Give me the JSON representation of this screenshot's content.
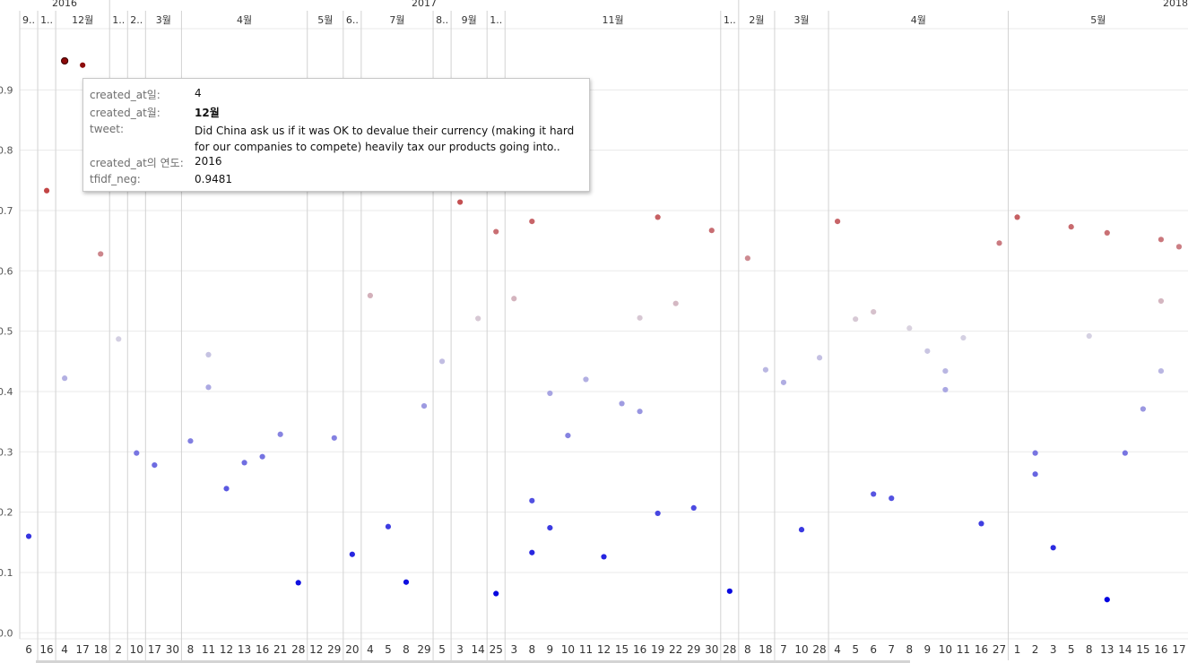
{
  "chart_data": {
    "type": "scatter",
    "y_axis": {
      "range": [
        -0.01,
        1.0
      ],
      "ticks": [
        {
          "value": 0.0,
          "label": "0.0"
        },
        {
          "value": 0.1,
          "label": "0.1"
        },
        {
          "value": 0.2,
          "label": "0.2"
        },
        {
          "value": 0.3,
          "label": "0.3"
        },
        {
          "value": 0.4,
          "label": "0.4"
        },
        {
          "value": 0.5,
          "label": "0.5"
        },
        {
          "value": 0.6,
          "label": "0.6"
        },
        {
          "value": 0.7,
          "label": "0.7"
        },
        {
          "value": 0.8,
          "label": "0.8"
        },
        {
          "value": 0.9,
          "label": "0.9"
        }
      ]
    },
    "years": [
      {
        "label": "2016",
        "first_day": 0,
        "last_day": 4
      },
      {
        "label": "2017",
        "first_day": 5,
        "last_day": 39
      },
      {
        "label": "2018",
        "first_day": 40,
        "last_day": 64
      }
    ],
    "months": [
      {
        "label": "9..",
        "first_day": 0,
        "last_day": 0
      },
      {
        "label": "1..",
        "first_day": 1,
        "last_day": 1
      },
      {
        "label": "12월",
        "first_day": 2,
        "last_day": 4
      },
      {
        "label": "1..",
        "first_day": 5,
        "last_day": 5
      },
      {
        "label": "2..",
        "first_day": 6,
        "last_day": 6
      },
      {
        "label": "3월",
        "first_day": 7,
        "last_day": 8
      },
      {
        "label": "4월",
        "first_day": 9,
        "last_day": 15
      },
      {
        "label": "5월",
        "first_day": 16,
        "last_day": 17
      },
      {
        "label": "6..",
        "first_day": 18,
        "last_day": 18
      },
      {
        "label": "7월",
        "first_day": 19,
        "last_day": 22
      },
      {
        "label": "8..",
        "first_day": 23,
        "last_day": 23
      },
      {
        "label": "9월",
        "first_day": 24,
        "last_day": 25
      },
      {
        "label": "1..",
        "first_day": 26,
        "last_day": 26
      },
      {
        "label": "11월",
        "first_day": 27,
        "last_day": 38
      },
      {
        "label": "1..",
        "first_day": 39,
        "last_day": 39
      },
      {
        "label": "2월",
        "first_day": 40,
        "last_day": 41
      },
      {
        "label": "3월",
        "first_day": 42,
        "last_day": 44
      },
      {
        "label": "4월",
        "first_day": 45,
        "last_day": 54
      },
      {
        "label": "5월",
        "first_day": 55,
        "last_day": 64
      }
    ],
    "days": [
      "6",
      "16",
      "4",
      "17",
      "18",
      "2",
      "10",
      "17",
      "30",
      "8",
      "11",
      "12",
      "13",
      "16",
      "21",
      "28",
      "12",
      "29",
      "20",
      "4",
      "5",
      "8",
      "29",
      "5",
      "3",
      "14",
      "25",
      "3",
      "8",
      "9",
      "10",
      "11",
      "12",
      "15",
      "16",
      "19",
      "22",
      "29",
      "30",
      "28",
      "8",
      "18",
      "7",
      "10",
      "28",
      "4",
      "5",
      "6",
      "7",
      "8",
      "9",
      "10",
      "11",
      "16",
      "27",
      "1",
      "2",
      "3",
      "5",
      "8",
      "13",
      "14",
      "15",
      "16",
      "17"
    ],
    "points": [
      {
        "day": 0,
        "y": 0.16
      },
      {
        "day": 1,
        "y": 0.733
      },
      {
        "day": 2,
        "y": 0.9481
      },
      {
        "day": 2,
        "y": 0.422
      },
      {
        "day": 3,
        "y": 0.941
      },
      {
        "day": 4,
        "y": 0.628
      },
      {
        "day": 5,
        "y": 0.487
      },
      {
        "day": 6,
        "y": 0.298
      },
      {
        "day": 7,
        "y": 0.278
      },
      {
        "day": 9,
        "y": 0.318
      },
      {
        "day": 10,
        "y": 0.461
      },
      {
        "day": 10,
        "y": 0.407
      },
      {
        "day": 11,
        "y": 0.239
      },
      {
        "day": 12,
        "y": 0.282
      },
      {
        "day": 13,
        "y": 0.292
      },
      {
        "day": 14,
        "y": 0.329
      },
      {
        "day": 15,
        "y": 0.083
      },
      {
        "day": 17,
        "y": 0.323
      },
      {
        "day": 18,
        "y": 0.13
      },
      {
        "day": 19,
        "y": 0.559
      },
      {
        "day": 20,
        "y": 0.176
      },
      {
        "day": 21,
        "y": 0.084
      },
      {
        "day": 22,
        "y": 0.376
      },
      {
        "day": 23,
        "y": 0.45
      },
      {
        "day": 24,
        "y": 0.714
      },
      {
        "day": 25,
        "y": 0.521
      },
      {
        "day": 26,
        "y": 0.665
      },
      {
        "day": 26,
        "y": 0.065
      },
      {
        "day": 27,
        "y": 0.554
      },
      {
        "day": 28,
        "y": 0.682
      },
      {
        "day": 28,
        "y": 0.219
      },
      {
        "day": 28,
        "y": 0.133
      },
      {
        "day": 29,
        "y": 0.397
      },
      {
        "day": 29,
        "y": 0.174
      },
      {
        "day": 30,
        "y": 0.327
      },
      {
        "day": 31,
        "y": 0.42
      },
      {
        "day": 32,
        "y": 0.126
      },
      {
        "day": 33,
        "y": 0.38
      },
      {
        "day": 34,
        "y": 0.522
      },
      {
        "day": 34,
        "y": 0.367
      },
      {
        "day": 35,
        "y": 0.689
      },
      {
        "day": 35,
        "y": 0.198
      },
      {
        "day": 36,
        "y": 0.546
      },
      {
        "day": 37,
        "y": 0.207
      },
      {
        "day": 38,
        "y": 0.667
      },
      {
        "day": 39,
        "y": 0.069
      },
      {
        "day": 40,
        "y": 0.621
      },
      {
        "day": 41,
        "y": 0.436
      },
      {
        "day": 42,
        "y": 0.415
      },
      {
        "day": 43,
        "y": 0.171
      },
      {
        "day": 44,
        "y": 0.456
      },
      {
        "day": 45,
        "y": 0.682
      },
      {
        "day": 46,
        "y": 0.52
      },
      {
        "day": 47,
        "y": 0.532
      },
      {
        "day": 47,
        "y": 0.23
      },
      {
        "day": 48,
        "y": 0.223
      },
      {
        "day": 49,
        "y": 0.505
      },
      {
        "day": 50,
        "y": 0.467
      },
      {
        "day": 51,
        "y": 0.434
      },
      {
        "day": 51,
        "y": 0.403
      },
      {
        "day": 52,
        "y": 0.489
      },
      {
        "day": 53,
        "y": 0.181
      },
      {
        "day": 54,
        "y": 0.646
      },
      {
        "day": 55,
        "y": 0.689
      },
      {
        "day": 56,
        "y": 0.298
      },
      {
        "day": 56,
        "y": 0.263
      },
      {
        "day": 57,
        "y": 0.141
      },
      {
        "day": 58,
        "y": 0.673
      },
      {
        "day": 59,
        "y": 0.492
      },
      {
        "day": 60,
        "y": 0.663
      },
      {
        "day": 60,
        "y": 0.055
      },
      {
        "day": 61,
        "y": 0.298
      },
      {
        "day": 62,
        "y": 0.371
      },
      {
        "day": 63,
        "y": 0.652
      },
      {
        "day": 63,
        "y": 0.55
      },
      {
        "day": 63,
        "y": 0.434
      },
      {
        "day": 64,
        "y": 0.64
      }
    ],
    "color_scale": {
      "low": "#0000e0",
      "mid": "#d9d5e2",
      "high": "#c03a3a",
      "max": "#8b0a0a"
    },
    "selected_point_index": 2
  },
  "tooltip": {
    "rows": [
      {
        "label": "created_at일:",
        "value": "4"
      },
      {
        "label": "created_at월:",
        "value": "12월"
      },
      {
        "label": "tweet:",
        "value": "Did China ask us if it was OK to devalue their currency (making it hard for our companies to compete) heavily tax our products going into.."
      },
      {
        "label": "created_at의 연도:",
        "value": "2016"
      },
      {
        "label": "tfidf_neg:",
        "value": "0.9481"
      }
    ]
  },
  "colors": {
    "grid": "#eaeaea",
    "separator": "#d2d2d2",
    "text": "#555555",
    "header_text": "#333333"
  }
}
